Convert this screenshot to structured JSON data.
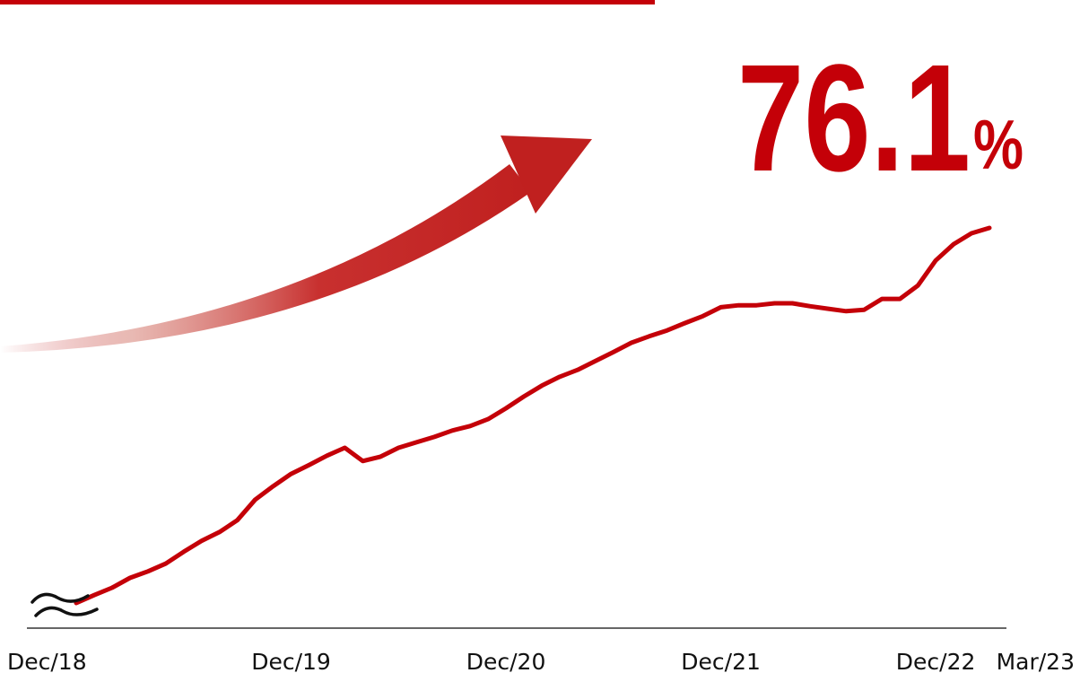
{
  "chart_data": {
    "type": "line",
    "headline": "76.1",
    "headline_unit": "%",
    "categories": [
      "Dec/18",
      null,
      null,
      null,
      null,
      null,
      null,
      null,
      null,
      null,
      null,
      null,
      "Dec/19",
      null,
      null,
      null,
      null,
      null,
      null,
      null,
      null,
      null,
      null,
      null,
      "Dec/20",
      null,
      null,
      null,
      null,
      null,
      null,
      null,
      null,
      null,
      null,
      null,
      "Dec/21",
      null,
      null,
      null,
      null,
      null,
      null,
      null,
      null,
      null,
      null,
      null,
      "Dec/22",
      null,
      null,
      "Mar/23"
    ],
    "values": [
      0,
      1.6,
      3.1,
      5.1,
      6.4,
      8.0,
      10.4,
      12.6,
      14.4,
      16.8,
      21.0,
      23.7,
      26.2,
      28.0,
      29.9,
      31.5,
      28.8,
      29.7,
      31.5,
      32.6,
      33.7,
      35.0,
      35.9,
      37.3,
      39.5,
      41.9,
      44.1,
      45.9,
      47.3,
      49.1,
      50.9,
      52.8,
      54.1,
      55.3,
      56.8,
      58.2,
      60.0,
      60.4,
      60.4,
      60.8,
      60.8,
      60.2,
      59.7,
      59.2,
      59.5,
      61.7,
      61.7,
      64.4,
      69.5,
      72.8,
      75.0,
      76.1
    ],
    "color": "#c40008",
    "ylim": [
      0,
      76.1
    ]
  }
}
